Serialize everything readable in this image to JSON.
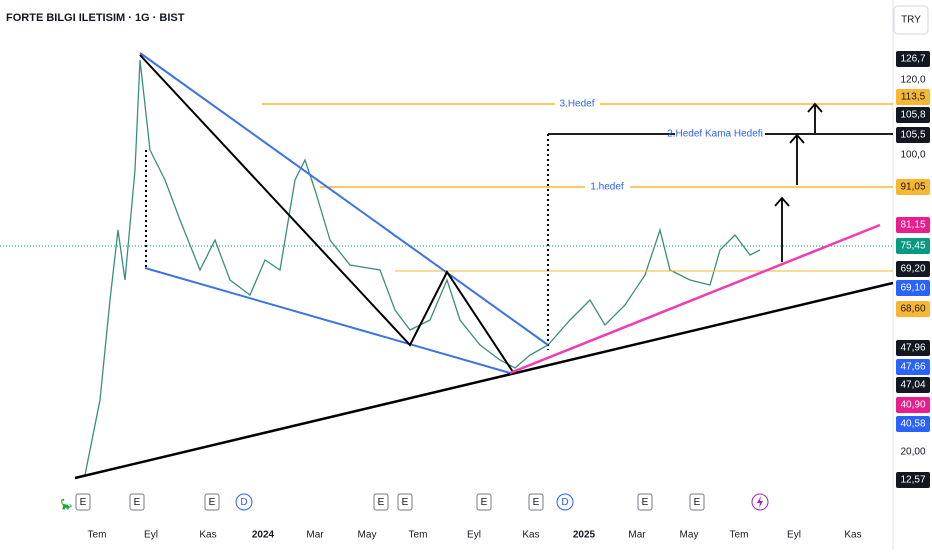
{
  "header": {
    "title": "FORTE BILGI ILETISIM · 1G · BIST",
    "currency": "TRY"
  },
  "price_labels": [
    {
      "text": "126,7",
      "color": "#131722"
    },
    {
      "text": "120,0"
    },
    {
      "text": "113,5",
      "color": "#f7b731"
    },
    {
      "text": "105,8",
      "color": "#131722"
    },
    {
      "text": "105,5",
      "color": "#131722"
    },
    {
      "text": "100,0"
    },
    {
      "text": "91,05",
      "color": "#f7b731"
    },
    {
      "text": "81,15",
      "color": "#e91e8c"
    },
    {
      "text": "75,45",
      "color": "#089981"
    },
    {
      "text": "69,20",
      "color": "#131722"
    },
    {
      "text": "69,10",
      "color": "#2962ff"
    },
    {
      "text": "68,60",
      "color": "#f7b731"
    },
    {
      "text": "47,96",
      "color": "#131722"
    },
    {
      "text": "47,66",
      "color": "#2962ff"
    },
    {
      "text": "47,04",
      "color": "#131722"
    },
    {
      "text": "40,90",
      "color": "#e91e8c"
    },
    {
      "text": "40,58",
      "color": "#2962ff"
    },
    {
      "text": "20,00"
    },
    {
      "text": "12,57",
      "color": "#131722"
    }
  ],
  "time_labels": [
    "Tem",
    "Eyl",
    "Kas",
    "2024",
    "Mar",
    "May",
    "Tem",
    "Eyl",
    "Kas",
    "2025",
    "Mar",
    "May",
    "Tem",
    "Eyl",
    "Kas"
  ],
  "annotations": [
    "3.Hedef",
    "2.Hedef Kama Hedefi",
    "1.hedef"
  ],
  "event_markers": [
    "E",
    "E",
    "E",
    "D",
    "E",
    "E",
    "E",
    "E",
    "D",
    "E",
    "E"
  ]
}
